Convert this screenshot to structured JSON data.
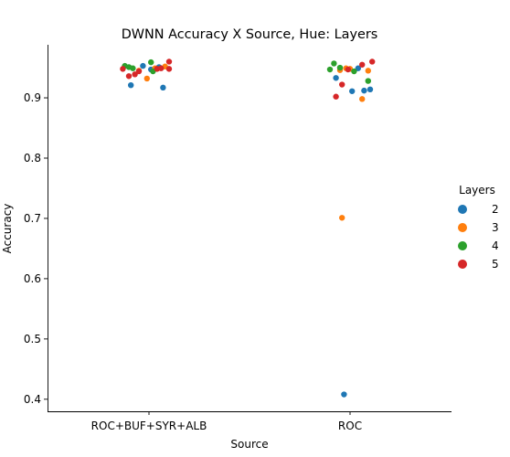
{
  "chart_data": {
    "type": "scatter",
    "title": "DWNN Accuracy X Source, Hue: Layers",
    "xlabel": "Source",
    "ylabel": "Accuracy",
    "categories": [
      "ROC+BUF+SYR+ALB",
      "ROC"
    ],
    "ylim": [
      0.38,
      0.988
    ],
    "yticks": [
      "0.4",
      "0.5",
      "0.6",
      "0.7",
      "0.8",
      "0.9"
    ],
    "grid": false,
    "legend": {
      "title": "Layers",
      "placement": "center-right"
    },
    "series": [
      {
        "name": "2",
        "color": "#1f77b4",
        "points": [
          {
            "category": "ROC+BUF+SYR+ALB",
            "jitter": -0.09,
            "y": 0.921
          },
          {
            "category": "ROC+BUF+SYR+ALB",
            "jitter": 0.07,
            "y": 0.917
          },
          {
            "category": "ROC+BUF+SYR+ALB",
            "jitter": -0.03,
            "y": 0.953
          },
          {
            "category": "ROC+BUF+SYR+ALB",
            "jitter": 0.05,
            "y": 0.951
          },
          {
            "category": "ROC+BUF+SYR+ALB",
            "jitter": 0.01,
            "y": 0.947
          },
          {
            "category": "ROC",
            "jitter": -0.07,
            "y": 0.933
          },
          {
            "category": "ROC",
            "jitter": 0.01,
            "y": 0.911
          },
          {
            "category": "ROC",
            "jitter": 0.07,
            "y": 0.912
          },
          {
            "category": "ROC",
            "jitter": 0.1,
            "y": 0.914
          },
          {
            "category": "ROC",
            "jitter": -0.03,
            "y": 0.408
          },
          {
            "category": "ROC",
            "jitter": 0.04,
            "y": 0.949
          }
        ]
      },
      {
        "name": "3",
        "color": "#ff7f0e",
        "points": [
          {
            "category": "ROC+BUF+SYR+ALB",
            "jitter": -0.01,
            "y": 0.932
          },
          {
            "category": "ROC+BUF+SYR+ALB",
            "jitter": -0.05,
            "y": 0.945
          },
          {
            "category": "ROC+BUF+SYR+ALB",
            "jitter": 0.03,
            "y": 0.949
          },
          {
            "category": "ROC+BUF+SYR+ALB",
            "jitter": 0.08,
            "y": 0.952
          },
          {
            "category": "ROC",
            "jitter": -0.04,
            "y": 0.701
          },
          {
            "category": "ROC",
            "jitter": 0.06,
            "y": 0.898
          },
          {
            "category": "ROC",
            "jitter": -0.05,
            "y": 0.946
          },
          {
            "category": "ROC",
            "jitter": 0.0,
            "y": 0.948
          },
          {
            "category": "ROC",
            "jitter": 0.09,
            "y": 0.945
          },
          {
            "category": "ROC",
            "jitter": -0.02,
            "y": 0.949
          }
        ]
      },
      {
        "name": "4",
        "color": "#2ca02c",
        "points": [
          {
            "category": "ROC+BUF+SYR+ALB",
            "jitter": -0.12,
            "y": 0.953
          },
          {
            "category": "ROC+BUF+SYR+ALB",
            "jitter": -0.08,
            "y": 0.949
          },
          {
            "category": "ROC+BUF+SYR+ALB",
            "jitter": 0.01,
            "y": 0.959
          },
          {
            "category": "ROC+BUF+SYR+ALB",
            "jitter": 0.02,
            "y": 0.944
          },
          {
            "category": "ROC+BUF+SYR+ALB",
            "jitter": -0.1,
            "y": 0.951
          },
          {
            "category": "ROC",
            "jitter": -0.08,
            "y": 0.957
          },
          {
            "category": "ROC",
            "jitter": -0.1,
            "y": 0.947
          },
          {
            "category": "ROC",
            "jitter": 0.09,
            "y": 0.928
          },
          {
            "category": "ROC",
            "jitter": 0.02,
            "y": 0.944
          },
          {
            "category": "ROC",
            "jitter": -0.05,
            "y": 0.95
          }
        ]
      },
      {
        "name": "5",
        "color": "#d62728",
        "points": [
          {
            "category": "ROC+BUF+SYR+ALB",
            "jitter": -0.13,
            "y": 0.948
          },
          {
            "category": "ROC+BUF+SYR+ALB",
            "jitter": -0.1,
            "y": 0.936
          },
          {
            "category": "ROC+BUF+SYR+ALB",
            "jitter": -0.07,
            "y": 0.939
          },
          {
            "category": "ROC+BUF+SYR+ALB",
            "jitter": -0.05,
            "y": 0.944
          },
          {
            "category": "ROC+BUF+SYR+ALB",
            "jitter": 0.04,
            "y": 0.948
          },
          {
            "category": "ROC+BUF+SYR+ALB",
            "jitter": 0.1,
            "y": 0.96
          },
          {
            "category": "ROC+BUF+SYR+ALB",
            "jitter": 0.1,
            "y": 0.948
          },
          {
            "category": "ROC+BUF+SYR+ALB",
            "jitter": 0.06,
            "y": 0.949
          },
          {
            "category": "ROC",
            "jitter": -0.07,
            "y": 0.902
          },
          {
            "category": "ROC",
            "jitter": -0.04,
            "y": 0.922
          },
          {
            "category": "ROC",
            "jitter": 0.06,
            "y": 0.955
          },
          {
            "category": "ROC",
            "jitter": 0.11,
            "y": 0.96
          },
          {
            "category": "ROC",
            "jitter": -0.01,
            "y": 0.947
          }
        ]
      }
    ]
  }
}
